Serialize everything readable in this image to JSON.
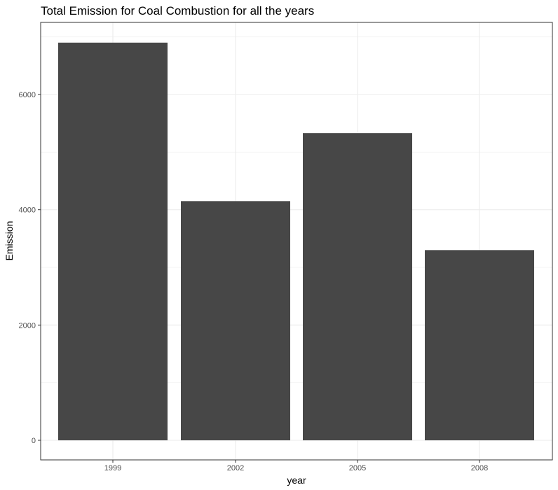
{
  "chart_data": {
    "type": "bar",
    "title": "Total Emission for Coal Combustion  for all the years",
    "xlabel": "year",
    "ylabel": "Emission",
    "categories": [
      "1999",
      "2002",
      "2005",
      "2008"
    ],
    "values": [
      6900,
      4150,
      5330,
      3300
    ],
    "ylim": [
      0,
      7000
    ],
    "yticks": [
      0,
      2000,
      4000,
      6000
    ],
    "grid": true,
    "legend": "none",
    "bar_color": "#474747",
    "panel_border_color": "#333333",
    "grid_color": "#ebebeb"
  }
}
